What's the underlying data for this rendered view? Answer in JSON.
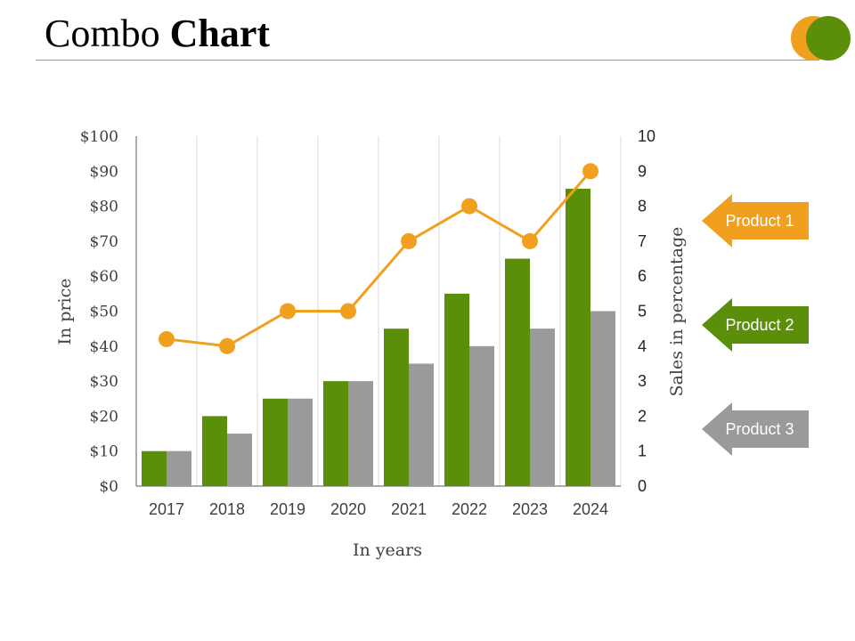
{
  "slide": {
    "title_light": "Combo",
    "title_bold": "Chart"
  },
  "colors": {
    "green": "#5b8f0a",
    "gray": "#9a9a9a",
    "orange": "#f0a01e",
    "grid": "#d9d9d9",
    "axis": "#595959"
  },
  "chart_data": {
    "type": "bar",
    "categories": [
      "2017",
      "2018",
      "2019",
      "2020",
      "2021",
      "2022",
      "2023",
      "2024"
    ],
    "series": [
      {
        "name": "Product 2",
        "type": "bar",
        "axis": "left",
        "color": "#5b8f0a",
        "values": [
          10,
          20,
          25,
          30,
          45,
          55,
          65,
          85
        ]
      },
      {
        "name": "Product 3",
        "type": "bar",
        "axis": "left",
        "color": "#9a9a9a",
        "values": [
          10,
          15,
          25,
          30,
          35,
          40,
          45,
          50
        ]
      },
      {
        "name": "Product 1",
        "type": "line",
        "axis": "right",
        "color": "#f0a01e",
        "values": [
          4.2,
          4,
          5,
          5,
          7,
          8,
          7,
          9
        ]
      }
    ],
    "xlabel": "In years",
    "ylabel": "In price",
    "y2label": "Sales in percentage",
    "ylim": [
      0,
      100
    ],
    "y2lim": [
      0,
      10
    ],
    "yticks": [
      "$0",
      "$10",
      "$20",
      "$30",
      "$40",
      "$50",
      "$60",
      "$70",
      "$80",
      "$90",
      "$100"
    ],
    "y2ticks": [
      "0",
      "1",
      "2",
      "3",
      "4",
      "5",
      "6",
      "7",
      "8",
      "9",
      "10"
    ],
    "legend": [
      {
        "label": "Product 1",
        "color": "#f0a01e"
      },
      {
        "label": "Product 2",
        "color": "#5b8f0a"
      },
      {
        "label": "Product 3",
        "color": "#9a9a9a"
      }
    ],
    "legend_position": "right"
  }
}
